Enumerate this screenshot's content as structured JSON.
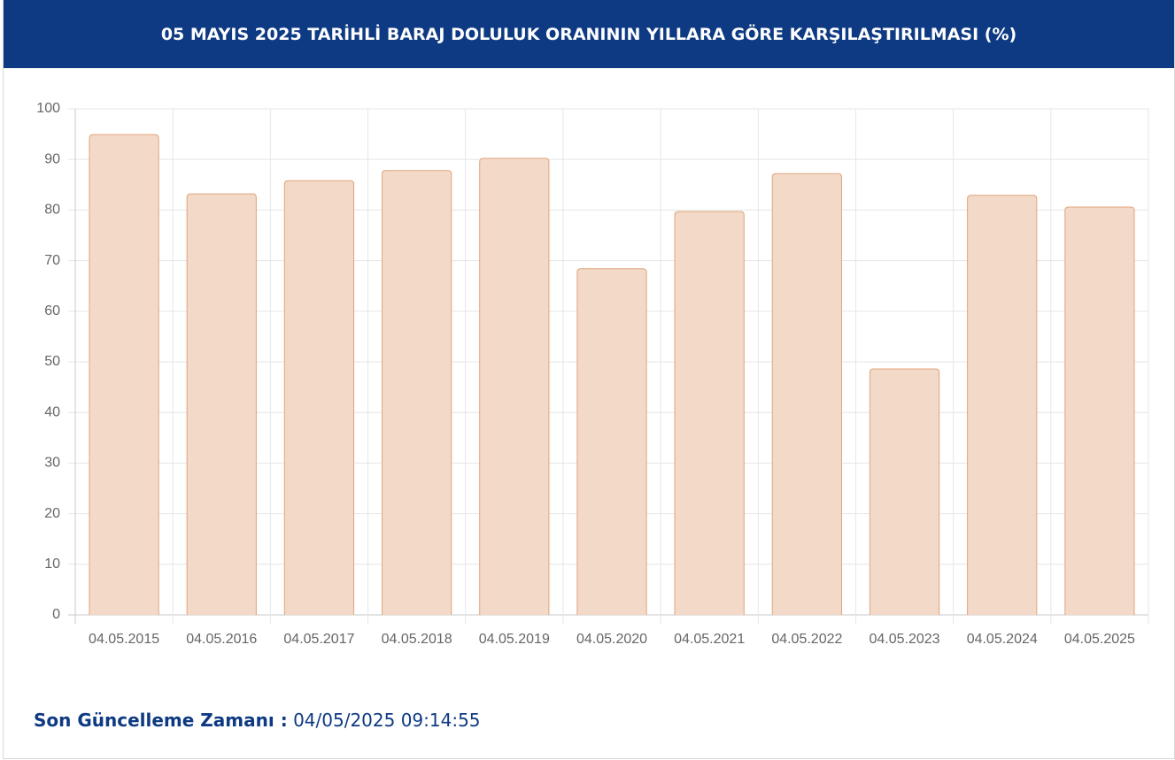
{
  "chart_data": {
    "type": "bar",
    "title": "05 MAYIS 2025 TARİHLİ BARAJ DOLULUK ORANININ YILLARA GÖRE KARŞILAŞTIRILMASI (%)",
    "categories": [
      "04.05.2015",
      "04.05.2016",
      "04.05.2017",
      "04.05.2018",
      "04.05.2019",
      "04.05.2020",
      "04.05.2021",
      "04.05.2022",
      "04.05.2023",
      "04.05.2024",
      "04.05.2025"
    ],
    "values": [
      94.9,
      83.2,
      85.8,
      87.8,
      90.2,
      68.4,
      79.7,
      87.2,
      48.6,
      82.9,
      80.6
    ],
    "color": "#f2d9c8",
    "border_color": "#e2a47c",
    "ylim": [
      0,
      100
    ],
    "yticks": [
      0,
      10,
      20,
      30,
      40,
      50,
      60,
      70,
      80,
      90,
      100
    ],
    "grid": true
  },
  "footer": {
    "label": "Son Güncelleme Zamanı :",
    "value": "04/05/2025 09:14:55"
  }
}
